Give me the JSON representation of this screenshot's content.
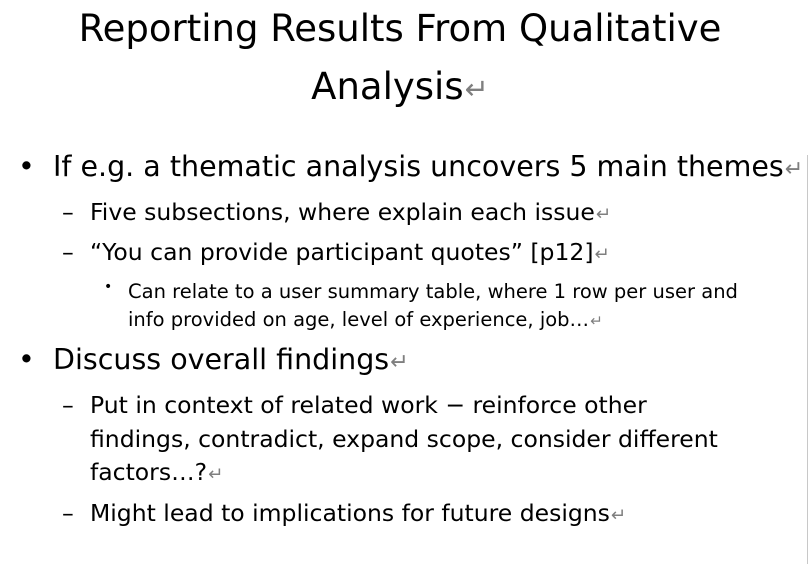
{
  "title": {
    "line1": "Reporting Results From Qualitative",
    "line2": "Analysis"
  },
  "paragraph_mark": "↵",
  "bullets": {
    "b1": {
      "marker": "•",
      "text": "If e.g. a thematic analysis uncovers 5 main themes",
      "subs": [
        {
          "marker": "–",
          "text": "Five subsections, where explain each issue"
        },
        {
          "marker": "–",
          "text": "“You can provide participant quotes” [p12]"
        }
      ],
      "subsub": {
        "marker": "•",
        "line1": "Can relate to a user summary table, where 1 row per user and",
        "line2": "info provided on age, level of experience, job…"
      }
    },
    "b2": {
      "marker": "•",
      "text": "Discuss overall findings",
      "subs": [
        {
          "marker": "–",
          "line1": "Put in context of related work − reinforce other",
          "line2": "findings, contradict, expand scope, consider different",
          "line3": "factors…?"
        },
        {
          "marker": "–",
          "text": "Might lead to implications for future designs"
        }
      ]
    }
  }
}
